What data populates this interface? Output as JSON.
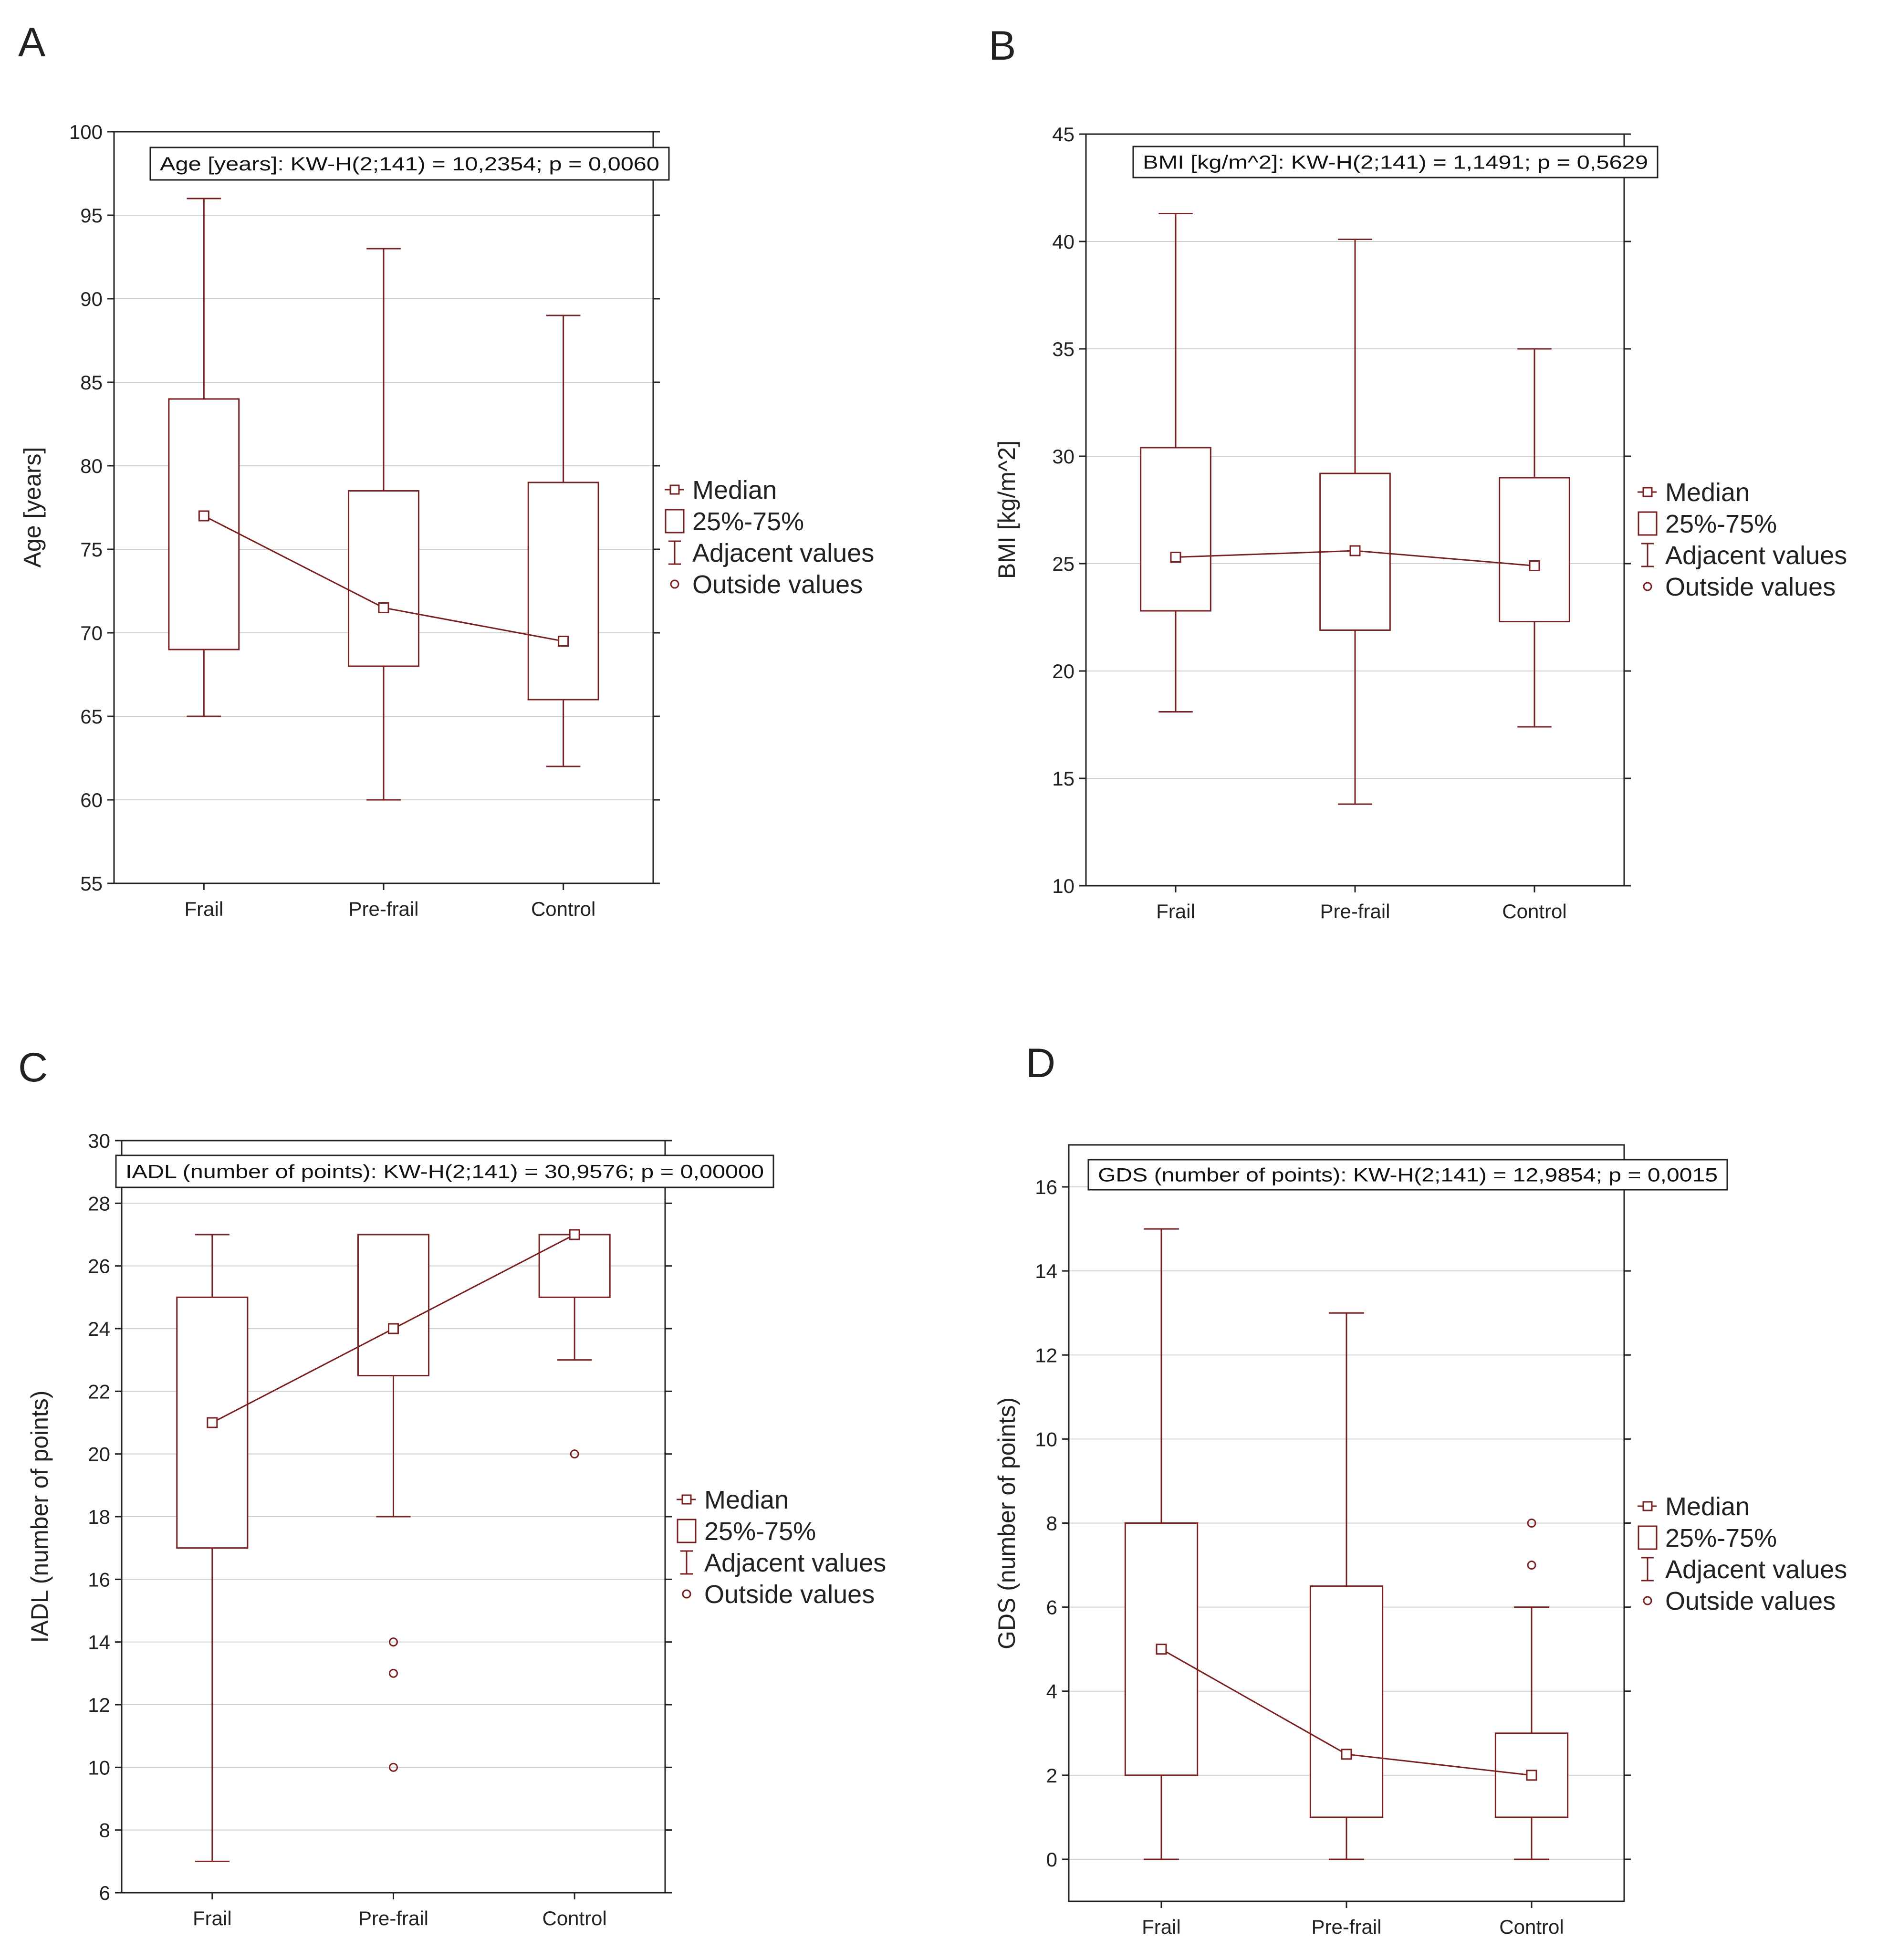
{
  "colors": {
    "box": "#7a2020",
    "axis": "#222222",
    "grid": "#cfcfcf",
    "background": "#ffffff"
  },
  "chart_data": [
    {
      "panel": "A",
      "type": "box",
      "title": "Age [years]:  KW-H(2;141) = 10,2354;  p = 0,0060",
      "ylabel": "Age [years]",
      "xlabel": "",
      "categories": [
        "Frail",
        "Pre-frail",
        "Control"
      ],
      "ylim": [
        55,
        100
      ],
      "yticks": [
        55,
        60,
        65,
        70,
        75,
        80,
        85,
        90,
        95,
        100
      ],
      "grid": true,
      "boxes": [
        {
          "median": 77,
          "q1": 69,
          "q3": 84,
          "whisker_low": 65,
          "whisker_high": 96,
          "outliers": []
        },
        {
          "median": 71.5,
          "q1": 68,
          "q3": 78.5,
          "whisker_low": 60,
          "whisker_high": 93,
          "outliers": []
        },
        {
          "median": 69.5,
          "q1": 66,
          "q3": 79,
          "whisker_low": 62,
          "whisker_high": 89,
          "outliers": []
        }
      ],
      "legend": [
        "Median",
        "25%-75%",
        "Adjacent values",
        "Outside values"
      ],
      "legend_position": "right"
    },
    {
      "panel": "B",
      "type": "box",
      "title": "BMI [kg/m^2]:  KW-H(2;141) = 1,1491;  p = 0,5629",
      "ylabel": "BMI [kg/m^2]",
      "xlabel": "",
      "categories": [
        "Frail",
        "Pre-frail",
        "Control"
      ],
      "ylim": [
        10,
        45
      ],
      "yticks": [
        10,
        15,
        20,
        25,
        30,
        35,
        40,
        45
      ],
      "grid": true,
      "boxes": [
        {
          "median": 25.3,
          "q1": 22.8,
          "q3": 30.4,
          "whisker_low": 18.1,
          "whisker_high": 41.3,
          "outliers": []
        },
        {
          "median": 25.6,
          "q1": 21.9,
          "q3": 29.2,
          "whisker_low": 13.8,
          "whisker_high": 40.1,
          "outliers": []
        },
        {
          "median": 24.9,
          "q1": 22.3,
          "q3": 29.0,
          "whisker_low": 17.4,
          "whisker_high": 35.0,
          "outliers": []
        }
      ],
      "legend": [
        "Median",
        "25%-75%",
        "Adjacent values",
        "Outside values"
      ],
      "legend_position": "right"
    },
    {
      "panel": "C",
      "type": "box",
      "title": "IADL (number of points):  KW-H(2;141) = 30,9576;  p = 0,00000",
      "ylabel": "IADL (number of points)",
      "xlabel": "",
      "categories": [
        "Frail",
        "Pre-frail",
        "Control"
      ],
      "ylim": [
        6,
        30
      ],
      "yticks": [
        6,
        8,
        10,
        12,
        14,
        16,
        18,
        20,
        22,
        24,
        26,
        28,
        30
      ],
      "grid": true,
      "boxes": [
        {
          "median": 21,
          "q1": 17,
          "q3": 25,
          "whisker_low": 7,
          "whisker_high": 27,
          "outliers": []
        },
        {
          "median": 24,
          "q1": 22.5,
          "q3": 27,
          "whisker_low": 18,
          "whisker_high": 27,
          "outliers": [
            14,
            13,
            10
          ]
        },
        {
          "median": 27,
          "q1": 25,
          "q3": 27,
          "whisker_low": 23,
          "whisker_high": 27,
          "outliers": [
            20
          ]
        }
      ],
      "legend": [
        "Median",
        "25%-75%",
        "Adjacent values",
        "Outside values"
      ],
      "legend_position": "right"
    },
    {
      "panel": "D",
      "type": "box",
      "title": "GDS (number of points):  KW-H(2;141) = 12,9854;  p = 0,0015",
      "ylabel": "GDS (number of points)",
      "xlabel": "",
      "categories": [
        "Frail",
        "Pre-frail",
        "Control"
      ],
      "ylim": [
        -1,
        17
      ],
      "yticks": [
        0,
        2,
        4,
        6,
        8,
        10,
        12,
        14,
        16
      ],
      "grid": true,
      "boxes": [
        {
          "median": 5,
          "q1": 2,
          "q3": 8,
          "whisker_low": 0,
          "whisker_high": 15,
          "outliers": []
        },
        {
          "median": 2.5,
          "q1": 1,
          "q3": 6.5,
          "whisker_low": 0,
          "whisker_high": 13,
          "outliers": []
        },
        {
          "median": 2,
          "q1": 1,
          "q3": 3,
          "whisker_low": 0,
          "whisker_high": 6,
          "outliers": [
            8,
            7
          ]
        }
      ],
      "legend": [
        "Median",
        "25%-75%",
        "Adjacent values",
        "Outside values"
      ],
      "legend_position": "right"
    }
  ]
}
